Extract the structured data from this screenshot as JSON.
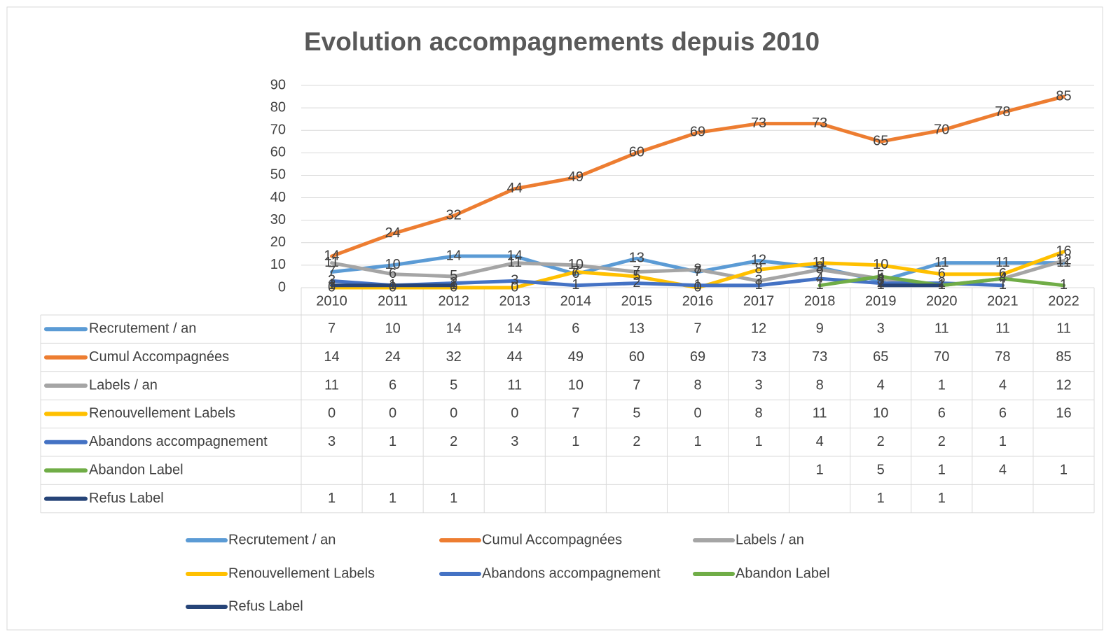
{
  "chart_data": {
    "type": "line",
    "title": "Evolution accompagnements depuis 2010",
    "categories": [
      "2010",
      "2011",
      "2012",
      "2013",
      "2014",
      "2015",
      "2016",
      "2017",
      "2018",
      "2019",
      "2020",
      "2021",
      "2022"
    ],
    "series": [
      {
        "name": "Recrutement / an",
        "color": "#5b9bd5",
        "values": [
          7,
          10,
          14,
          14,
          6,
          13,
          7,
          12,
          9,
          3,
          11,
          11,
          11
        ]
      },
      {
        "name": "Cumul Accompagnées",
        "color": "#ed7d31",
        "values": [
          14,
          24,
          32,
          44,
          49,
          60,
          69,
          73,
          73,
          65,
          70,
          78,
          85
        ]
      },
      {
        "name": "Labels / an",
        "color": "#a5a5a5",
        "values": [
          11,
          6,
          5,
          11,
          10,
          7,
          8,
          3,
          8,
          4,
          1,
          4,
          12
        ]
      },
      {
        "name": "Renouvellement Labels",
        "color": "#ffc000",
        "values": [
          0,
          0,
          0,
          0,
          7,
          5,
          0,
          8,
          11,
          10,
          6,
          6,
          16
        ]
      },
      {
        "name": "Abandons accompagnement",
        "color": "#4472c4",
        "values": [
          3,
          1,
          2,
          3,
          1,
          2,
          1,
          1,
          4,
          2,
          2,
          1,
          null
        ]
      },
      {
        "name": "Abandon Label",
        "color": "#70ad47",
        "values": [
          null,
          null,
          null,
          null,
          null,
          null,
          null,
          null,
          1,
          5,
          1,
          4,
          1
        ]
      },
      {
        "name": "Refus Label",
        "color": "#264478",
        "values": [
          1,
          1,
          1,
          null,
          null,
          null,
          null,
          null,
          null,
          1,
          1,
          null,
          null
        ]
      }
    ],
    "ylim": [
      0,
      90
    ],
    "yticks": [
      0,
      10,
      20,
      30,
      40,
      50,
      60,
      70,
      80,
      90
    ],
    "grid": true,
    "data_table": true,
    "legend": "bottom"
  }
}
